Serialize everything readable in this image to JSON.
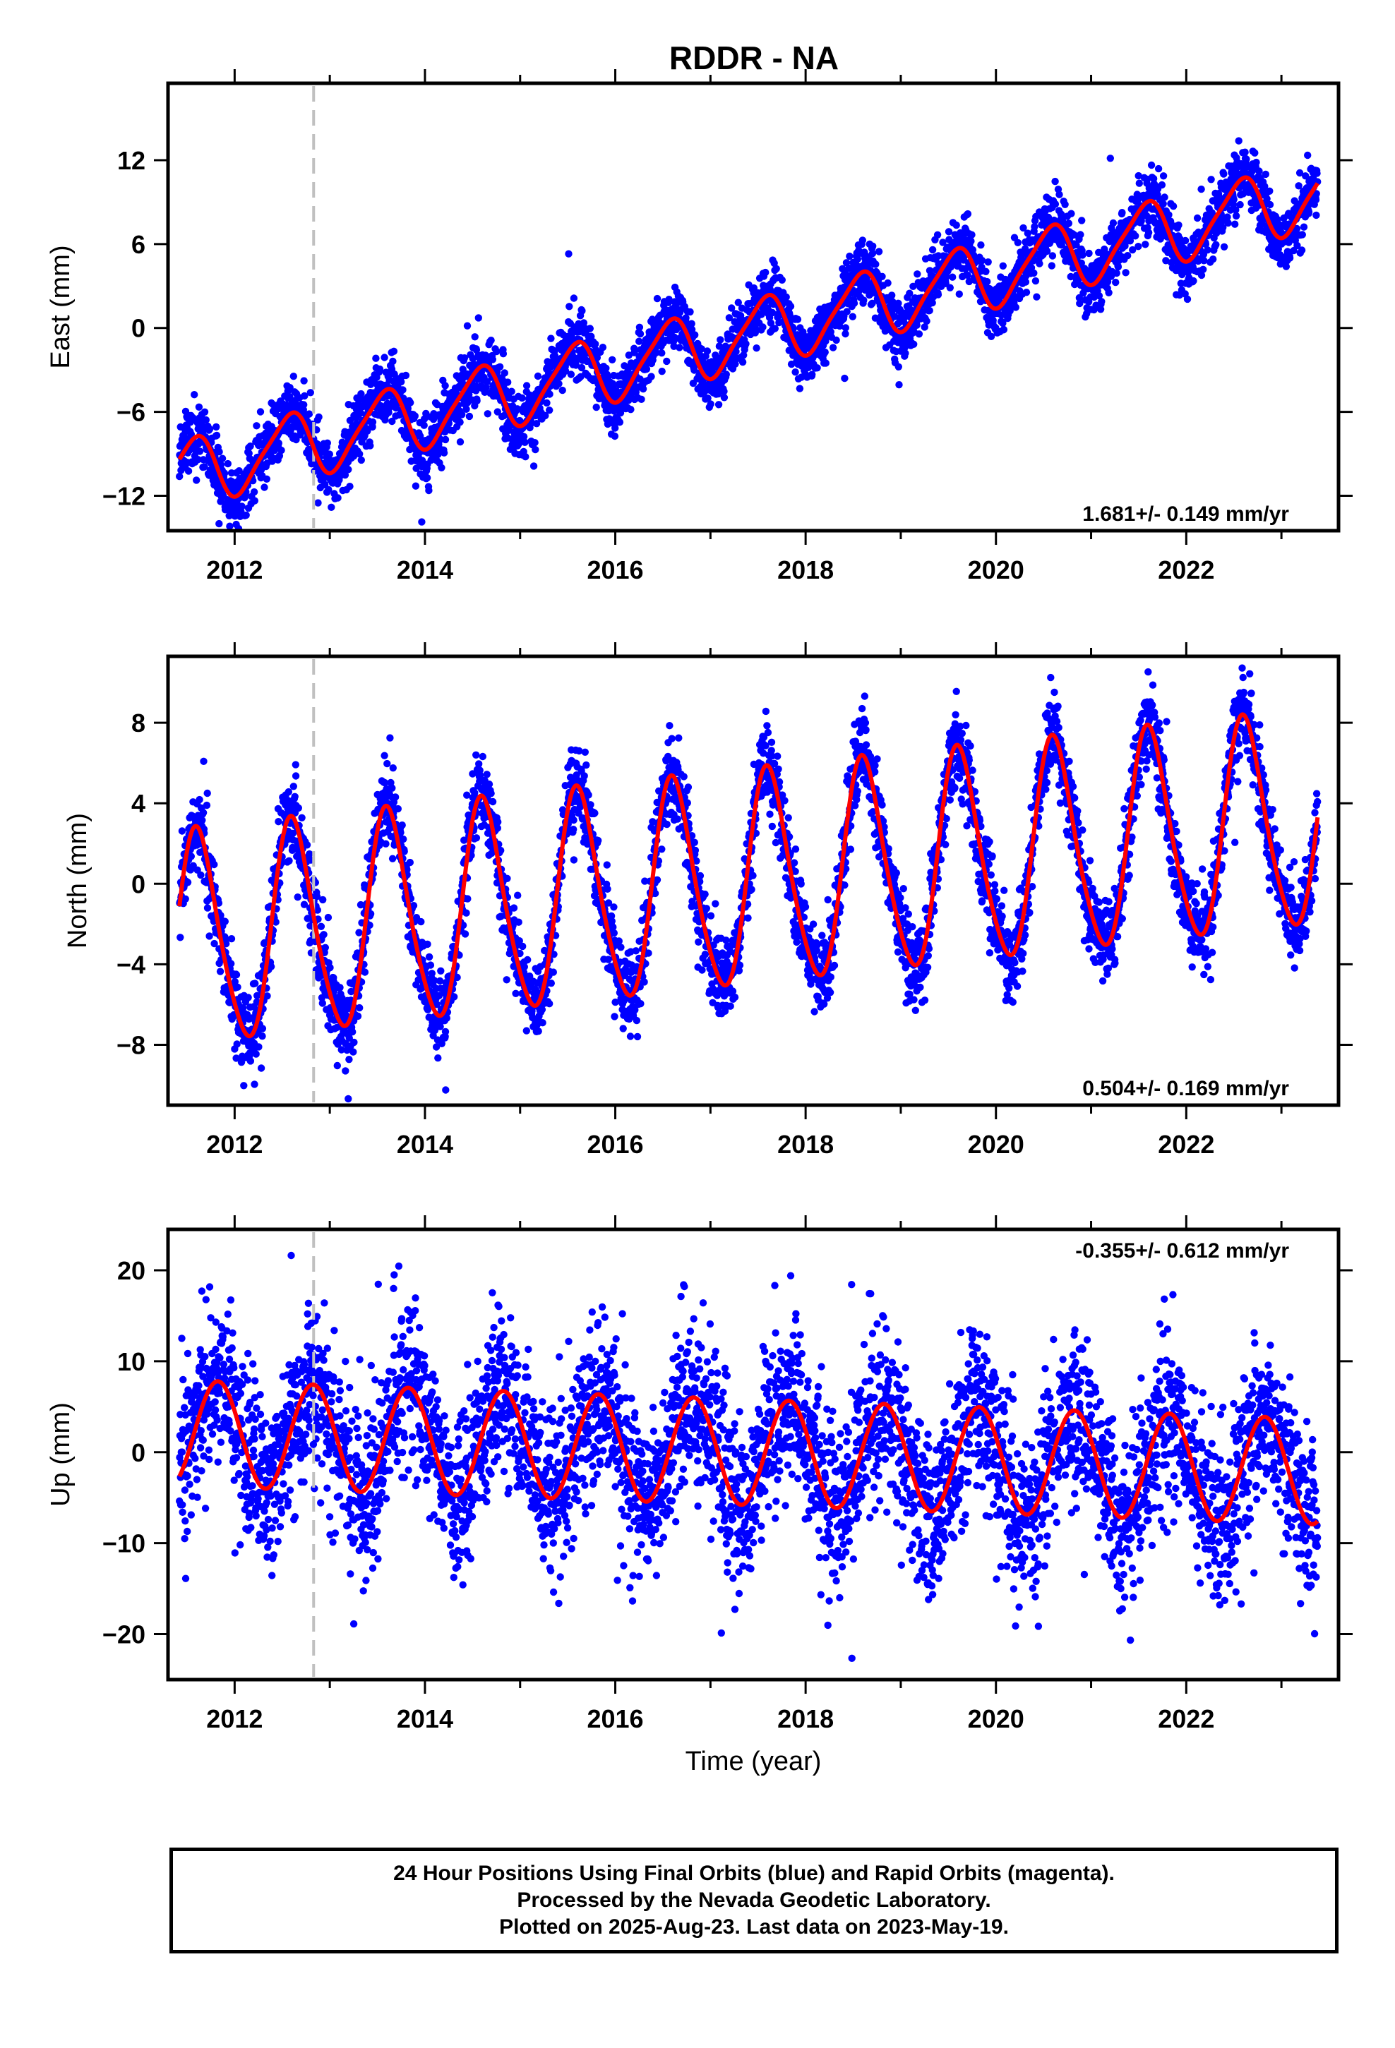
{
  "title": "RDDR - NA",
  "colors": {
    "final_orbits": "#0000ff",
    "model": "#ff0000",
    "offset_marker": "#c0c0c0",
    "frame": "#000000"
  },
  "chart_data": [
    {
      "type": "scatter",
      "component": "East",
      "ylabel": "East (mm)",
      "xlim": [
        2011.3,
        2023.6
      ],
      "ylim": [
        -14.5,
        17.5
      ],
      "yticks": [
        -12,
        -6,
        0,
        6,
        12
      ],
      "xticks": [
        2012,
        2014,
        2016,
        2018,
        2020,
        2022
      ],
      "rate_label": "1.681+/- 0.149 mm/yr",
      "rate_label_position": "bottom-right",
      "offset_marker_year": 2012.83,
      "model": {
        "ref_year": 2017.4,
        "intercept": -0.44,
        "rate": 1.681,
        "annual_cos": -2.2,
        "annual_sin": -0.8,
        "semiannual_cos": -0.35,
        "semiannual_sin": 0.3
      },
      "scatter_sd": 1.1,
      "start_year": 2011.42,
      "end_year": 2023.38
    },
    {
      "type": "scatter",
      "component": "North",
      "ylabel": "North (mm)",
      "xlim": [
        2011.3,
        2023.6
      ],
      "ylim": [
        -11,
        11.3
      ],
      "yticks": [
        -8,
        -4,
        0,
        4,
        8
      ],
      "xticks": [
        2012,
        2014,
        2016,
        2018,
        2020,
        2022
      ],
      "rate_label": "0.504+/- 0.169 mm/yr",
      "rate_label_position": "bottom-right",
      "offset_marker_year": 2012.83,
      "model": {
        "ref_year": 2017.4,
        "intercept": 0.1,
        "rate": 0.504,
        "annual_cos": -3.9,
        "annual_sin": -3.5,
        "semiannual_cos": 0.6,
        "semiannual_sin": 0.3
      },
      "scatter_sd": 1.0,
      "start_year": 2011.42,
      "end_year": 2023.38
    },
    {
      "type": "scatter",
      "component": "Up",
      "ylabel": "Up (mm)",
      "xlabel": "Time (year)",
      "xlim": [
        2011.3,
        2023.6
      ],
      "ylim": [
        -25,
        24.5
      ],
      "yticks": [
        -20,
        -10,
        0,
        10,
        20
      ],
      "xticks": [
        2012,
        2014,
        2016,
        2018,
        2020,
        2022
      ],
      "rate_label": "-0.355+/- 0.612 mm/yr",
      "rate_label_position": "top-right",
      "offset_marker_year": 2012.83,
      "model": {
        "ref_year": 2017.4,
        "intercept": 0.0,
        "rate": -0.355,
        "annual_cos": 2.6,
        "annual_sin": -5.2,
        "semiannual_cos": 0.0,
        "semiannual_sin": 0.0
      },
      "scatter_sd": 4.6,
      "start_year": 2011.42,
      "end_year": 2023.38
    }
  ],
  "footer": {
    "line1": "24 Hour Positions Using Final Orbits (blue) and Rapid Orbits (magenta).",
    "line2": "Processed by the Nevada Geodetic Laboratory.",
    "line3": "Plotted on 2025-Aug-23. Last data on 2023-May-19."
  }
}
